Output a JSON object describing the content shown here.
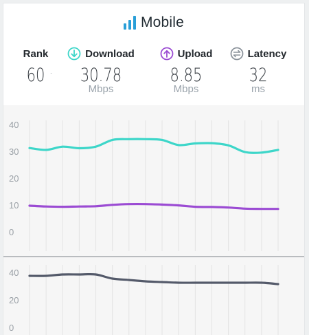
{
  "header": {
    "title": "Mobile",
    "title_icon": "signal-bars-icon",
    "accent_color": "#2a9fd8"
  },
  "metrics": {
    "rank": {
      "label": "Rank",
      "value": "60",
      "suffix": "-"
    },
    "download": {
      "label": "Download",
      "value": "30.78",
      "unit": "Mbps",
      "icon": "arrow-down-circle-icon",
      "color": "#3dd6c9"
    },
    "upload": {
      "label": "Upload",
      "value": "8.85",
      "unit": "Mbps",
      "icon": "arrow-up-circle-icon",
      "color": "#9b4bd3"
    },
    "latency": {
      "label": "Latency",
      "value": "32",
      "unit": "ms",
      "icon": "swap-circle-icon",
      "color": "#8c949c"
    }
  },
  "chart_data": [
    {
      "type": "line",
      "x": [
        0,
        1,
        2,
        3,
        4,
        5,
        6,
        7,
        8,
        9,
        10,
        11,
        12,
        13,
        14,
        15
      ],
      "series": [
        {
          "name": "Download",
          "color": "#3dd6c9",
          "values": [
            31.5,
            30.8,
            32.0,
            31.4,
            32.0,
            34.5,
            34.8,
            34.8,
            34.5,
            32.6,
            33.2,
            33.3,
            32.5,
            30.0,
            29.8,
            30.8
          ]
        },
        {
          "name": "Upload",
          "color": "#9b4bd3",
          "values": [
            10.0,
            9.7,
            9.6,
            9.7,
            9.8,
            10.3,
            10.6,
            10.6,
            10.4,
            10.1,
            9.6,
            9.5,
            9.3,
            8.9,
            8.8,
            8.8
          ]
        }
      ],
      "yticks": [
        0,
        10,
        20,
        30,
        40
      ],
      "ylim": [
        0,
        40
      ],
      "grid": "vertical"
    },
    {
      "type": "line",
      "x": [
        0,
        1,
        2,
        3,
        4,
        5,
        6,
        7,
        8,
        9,
        10,
        11,
        12,
        13,
        14,
        15
      ],
      "series": [
        {
          "name": "Latency",
          "color": "#545a6a",
          "values": [
            38,
            38,
            39,
            39,
            39,
            36,
            35,
            34,
            33.5,
            33,
            33,
            33,
            33,
            33,
            33,
            32
          ]
        }
      ],
      "yticks": [
        0,
        20,
        40
      ],
      "ylim": [
        0,
        40
      ],
      "grid": "vertical"
    }
  ]
}
